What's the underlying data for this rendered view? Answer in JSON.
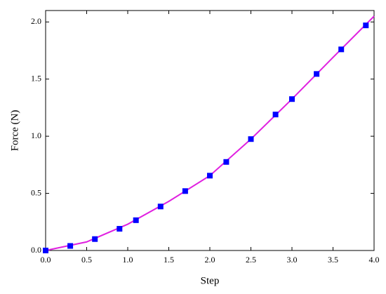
{
  "chart_data": {
    "type": "line",
    "xlabel": "Step",
    "ylabel": "Force (N)",
    "xlim": [
      0,
      4
    ],
    "ylim": [
      0,
      2.1
    ],
    "xticks": [
      {
        "value": 0,
        "label": "0.0"
      },
      0.5,
      {
        "value": 1,
        "label": "1.0"
      },
      1.5,
      {
        "value": 2,
        "label": "2.0"
      },
      2.5,
      {
        "value": 3,
        "label": "3.0"
      },
      3.5,
      {
        "value": 4,
        "label": "4.0"
      }
    ],
    "yticks": [
      {
        "value": 0,
        "label": "0.0"
      },
      0.5,
      {
        "value": 1,
        "label": "1.0"
      },
      1.5,
      {
        "value": 2,
        "label": "2.0"
      }
    ],
    "series": [
      {
        "style": "line",
        "color": "#e020e0",
        "x": [
          0,
          0.5,
          1,
          1.5,
          2,
          2.5,
          3,
          3.5,
          4
        ],
        "values": [
          0,
          0.075,
          0.23,
          0.43,
          0.655,
          0.975,
          1.325,
          1.69,
          2.05
        ]
      },
      {
        "style": "markers",
        "marker": "square",
        "color": "#0000ff",
        "x": [
          0,
          0.3,
          0.6,
          0.9,
          1.1,
          1.4,
          1.7,
          2.0,
          2.2,
          2.5,
          2.8,
          3.0,
          3.3,
          3.6,
          3.9
        ],
        "values": [
          0,
          0.04,
          0.1,
          0.19,
          0.265,
          0.385,
          0.52,
          0.655,
          0.775,
          0.975,
          1.19,
          1.325,
          1.545,
          1.76,
          1.97
        ]
      }
    ]
  }
}
